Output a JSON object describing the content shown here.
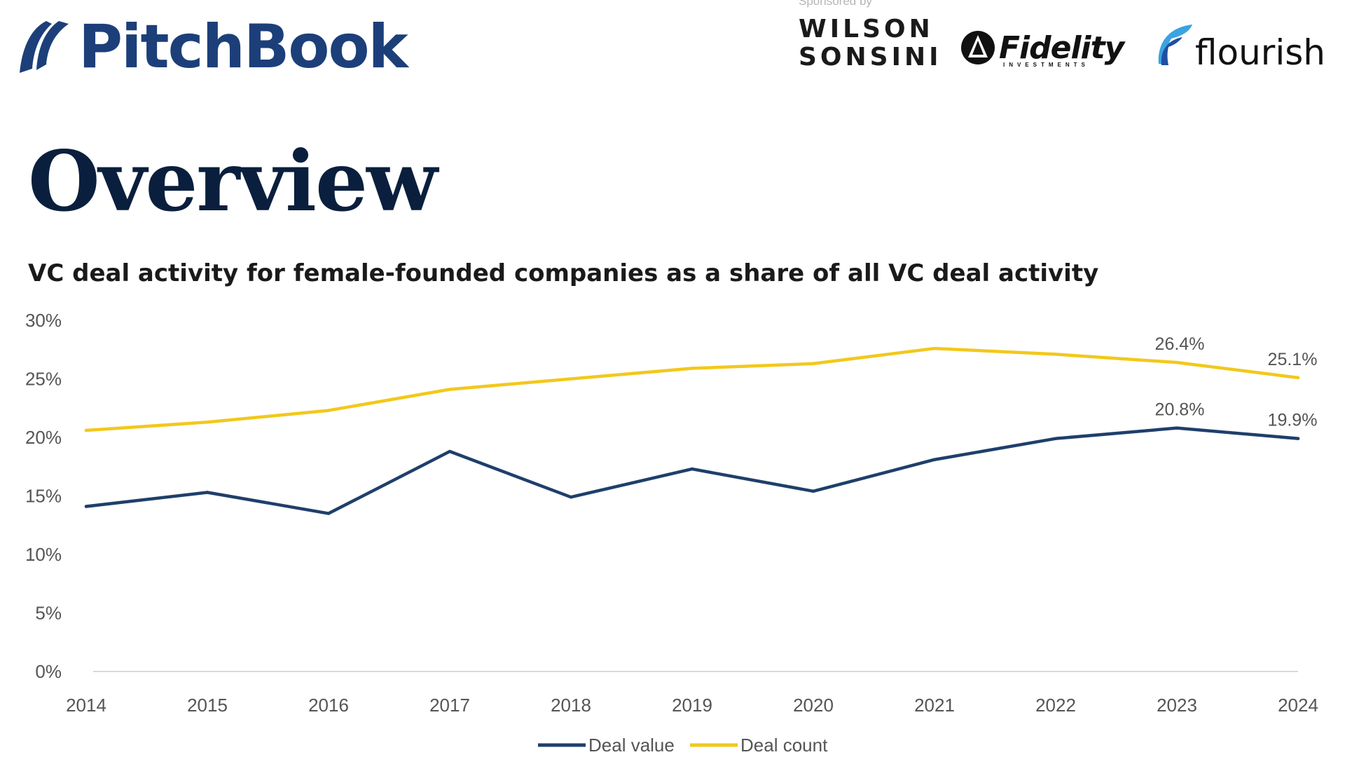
{
  "header": {
    "brand": "PitchBook",
    "sponsored_label": "Sponsored by",
    "sponsor_1_line1": "WILSON",
    "sponsor_1_line2": "SONSINI",
    "sponsor_2": "Fidelity",
    "sponsor_2_sub": "INVESTMENTS",
    "sponsor_3": "flourish"
  },
  "page": {
    "title": "Overview"
  },
  "colors": {
    "deal_value": "#1f3f6b",
    "deal_count": "#f2c81b",
    "brand": "#1c3f7a"
  },
  "chart_data": {
    "type": "line",
    "title": "VC deal activity for female-founded companies as a share of all VC deal activity",
    "xlabel": "",
    "ylabel": "",
    "x": [
      "2014",
      "2015",
      "2016",
      "2017",
      "2018",
      "2019",
      "2020",
      "2021",
      "2022",
      "2023",
      "2024"
    ],
    "ylim": [
      0,
      30
    ],
    "yticks": [
      "0%",
      "5%",
      "10%",
      "15%",
      "20%",
      "25%",
      "30%"
    ],
    "grid": false,
    "legend_position": "bottom-center",
    "series": [
      {
        "name": "Deal value",
        "color": "#1f3f6b",
        "values": [
          14.1,
          15.3,
          13.5,
          18.8,
          14.9,
          17.3,
          15.4,
          18.1,
          19.9,
          20.8,
          19.9
        ],
        "labels": {
          "9": "20.8%",
          "10": "19.9%"
        }
      },
      {
        "name": "Deal count",
        "color": "#f2c81b",
        "values": [
          20.6,
          21.3,
          22.3,
          24.1,
          25.0,
          25.9,
          26.3,
          27.6,
          27.1,
          26.4,
          25.1
        ],
        "labels": {
          "9": "26.4%",
          "10": "25.1%"
        }
      }
    ]
  }
}
